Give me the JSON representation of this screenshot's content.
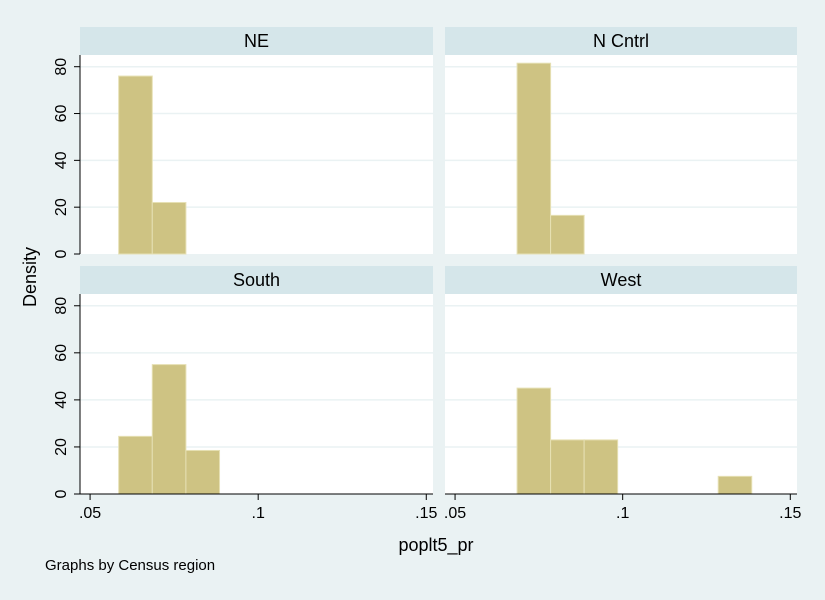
{
  "chart_data": {
    "type": "bar",
    "subtype": "histogram-by-group",
    "ylabel": "Density",
    "xlabel": "poplt5_pr",
    "note": "Graphs by Census region",
    "ylim": [
      0,
      85
    ],
    "yticks": [
      0,
      20,
      40,
      60,
      80
    ],
    "xlim": [
      0.047,
      0.152
    ],
    "xticks": [
      0.05,
      0.1,
      0.15
    ],
    "xtick_labels": [
      ".05",
      ".1",
      ".15"
    ],
    "bar_color": "#cec383",
    "bar_edge_color": "#e6e0b4",
    "panel_header_color": "#d5e6ea",
    "grid": true,
    "panels": [
      {
        "title": "NE",
        "bins": [
          {
            "x0": 0.0585,
            "x1": 0.0685,
            "y": 76
          },
          {
            "x0": 0.0685,
            "x1": 0.0785,
            "y": 22
          }
        ]
      },
      {
        "title": "N Cntrl",
        "bins": [
          {
            "x0": 0.0685,
            "x1": 0.0785,
            "y": 81.5
          },
          {
            "x0": 0.0785,
            "x1": 0.0885,
            "y": 16.5
          }
        ]
      },
      {
        "title": "South",
        "bins": [
          {
            "x0": 0.0585,
            "x1": 0.0685,
            "y": 24.5
          },
          {
            "x0": 0.0685,
            "x1": 0.0785,
            "y": 55
          },
          {
            "x0": 0.0785,
            "x1": 0.0885,
            "y": 18.5
          }
        ]
      },
      {
        "title": "West",
        "bins": [
          {
            "x0": 0.0685,
            "x1": 0.0785,
            "y": 45
          },
          {
            "x0": 0.0785,
            "x1": 0.0885,
            "y": 23
          },
          {
            "x0": 0.0885,
            "x1": 0.0985,
            "y": 23
          },
          {
            "x0": 0.1285,
            "x1": 0.1385,
            "y": 7.5
          }
        ]
      }
    ]
  }
}
